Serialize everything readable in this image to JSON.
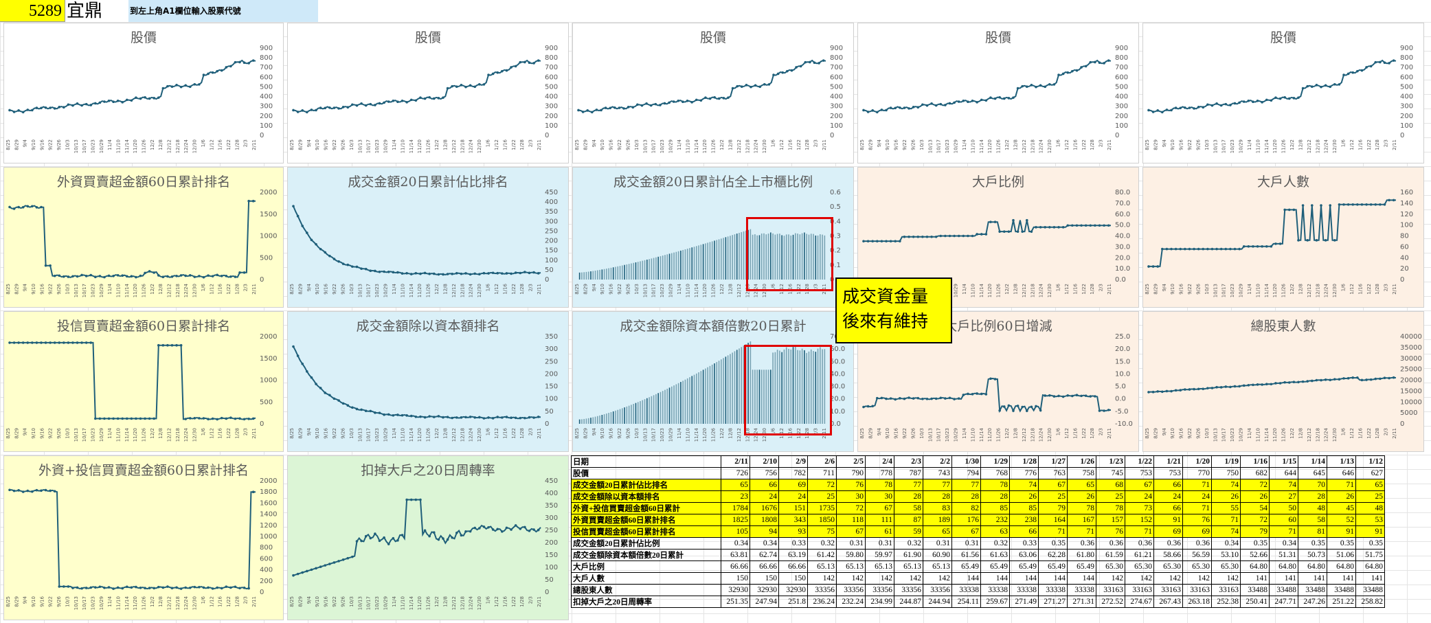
{
  "header": {
    "stock_code": "5289",
    "stock_name": "宜鼎",
    "instruction": "到左上角A1欄位輸入股票代號"
  },
  "colors": {
    "line": "#1f5f7a",
    "yellow_bg": "#ffffcc",
    "blue_bg": "#daf0f8",
    "peach_bg": "#fdf0e4",
    "green_bg": "#dcf5d6",
    "highlight": "#ffff00",
    "red_box": "#e00000"
  },
  "x_ticks": [
    "8/25",
    "8/29",
    "9/4",
    "9/10",
    "9/16",
    "9/22",
    "9/26",
    "10/3",
    "10/13",
    "10/17",
    "10/23",
    "10/29",
    "11/4",
    "11/10",
    "11/14",
    "11/20",
    "11/26",
    "12/2",
    "12/8",
    "12/12",
    "12/18",
    "12/24",
    "12/30",
    "1/6",
    "1/12",
    "1/16",
    "1/22",
    "1/28",
    "2/3",
    "2/11"
  ],
  "charts": [
    {
      "id": "price1",
      "title": "股價",
      "type": "line",
      "y_ticks": [
        "900",
        "800",
        "700",
        "600",
        "500",
        "400",
        "300",
        "200",
        "100",
        "0"
      ],
      "ylim": [
        0,
        900
      ]
    },
    {
      "id": "price2",
      "title": "股價",
      "type": "line",
      "y_ticks": [
        "900",
        "800",
        "700",
        "600",
        "500",
        "400",
        "300",
        "200",
        "100",
        "0"
      ],
      "ylim": [
        0,
        900
      ]
    },
    {
      "id": "price3",
      "title": "股價",
      "type": "line",
      "y_ticks": [
        "900",
        "800",
        "700",
        "600",
        "500",
        "400",
        "300",
        "200",
        "100",
        "0"
      ],
      "ylim": [
        0,
        900
      ]
    },
    {
      "id": "price4",
      "title": "股價",
      "type": "line",
      "y_ticks": [
        "900",
        "800",
        "700",
        "600",
        "500",
        "400",
        "300",
        "200",
        "100",
        "0"
      ],
      "ylim": [
        0,
        900
      ]
    },
    {
      "id": "price5",
      "title": "股價",
      "type": "line",
      "y_ticks": [
        "900",
        "800",
        "700",
        "600",
        "500",
        "400",
        "300",
        "200",
        "100",
        "0"
      ],
      "ylim": [
        0,
        900
      ]
    },
    {
      "id": "foreign_rank",
      "title": "外資買賣超金額60日累計排名",
      "type": "line",
      "y_ticks": [
        "2000",
        "1500",
        "1000",
        "500",
        "0"
      ],
      "ylim": [
        0,
        2000
      ]
    },
    {
      "id": "turnover_rank",
      "title": "成交金額20日累計佔比排名",
      "type": "line",
      "y_ticks": [
        "450",
        "400",
        "350",
        "300",
        "250",
        "200",
        "150",
        "100",
        "50",
        "0"
      ],
      "ylim": [
        0,
        450
      ]
    },
    {
      "id": "turnover_ratio",
      "title": "成交金額20日累計佔全上市櫃比例",
      "type": "bar",
      "y_ticks": [
        "0.6",
        "0.5",
        "0.4",
        "0.3",
        "0.2",
        "0.1",
        "0"
      ],
      "ylim": [
        0,
        0.6
      ]
    },
    {
      "id": "big_holder_ratio",
      "title": "大戶比例",
      "type": "line",
      "y_ticks": [
        "80.0",
        "70.0",
        "60.0",
        "50.0",
        "40.0",
        "30.0",
        "20.0",
        "10.0",
        "0.0"
      ],
      "ylim": [
        0,
        80
      ]
    },
    {
      "id": "big_holder_count",
      "title": "大戶人數",
      "type": "line",
      "y_ticks": [
        "160",
        "140",
        "120",
        "100",
        "80",
        "60",
        "40",
        "20",
        "0"
      ],
      "ylim": [
        0,
        160
      ]
    },
    {
      "id": "trust_rank",
      "title": "投信買賣超金額60日累計排名",
      "type": "line",
      "y_ticks": [
        "2000",
        "1500",
        "1000",
        "500",
        "0"
      ],
      "ylim": [
        0,
        2000
      ]
    },
    {
      "id": "turnover_cap_rank",
      "title": "成交金額除以資本額排名",
      "type": "line",
      "y_ticks": [
        "350",
        "300",
        "250",
        "200",
        "150",
        "100",
        "50",
        "0"
      ],
      "ylim": [
        0,
        350
      ]
    },
    {
      "id": "turnover_cap_multiple",
      "title": "成交金額除資本額倍數20日累計",
      "type": "bar",
      "y_ticks": [
        "70.0",
        "60.0",
        "50.0",
        "40.0",
        "30.0",
        "20.0",
        "10.0",
        "0.0"
      ],
      "ylim": [
        0,
        70
      ]
    },
    {
      "id": "big_holder_change",
      "title": "大戶比例60日增減",
      "type": "line",
      "y_ticks": [
        "25.0",
        "20.0",
        "15.0",
        "10.0",
        "5.0",
        "0.0",
        "-5.0",
        "-10.0"
      ],
      "ylim": [
        -10,
        25
      ]
    },
    {
      "id": "total_holders",
      "title": "總股東人數",
      "type": "line",
      "y_ticks": [
        "40000",
        "35000",
        "30000",
        "25000",
        "20000",
        "15000",
        "10000",
        "5000",
        "0"
      ],
      "ylim": [
        0,
        40000
      ]
    },
    {
      "id": "combined_rank",
      "title": "外資+投信買賣超金額60日累計排名",
      "type": "line",
      "y_ticks": [
        "2000",
        "1800",
        "1600",
        "1400",
        "1200",
        "1000",
        "800",
        "600",
        "400",
        "200",
        "0"
      ],
      "ylim": [
        0,
        2000
      ]
    },
    {
      "id": "turnover_rate",
      "title": "扣掉大戶之20日周轉率",
      "type": "line",
      "y_ticks": [
        "450",
        "400",
        "350",
        "300",
        "250",
        "200",
        "150",
        "100",
        "50",
        "0"
      ],
      "ylim": [
        0,
        450
      ]
    }
  ],
  "callout": {
    "line1": "成交資金量",
    "line2": "後來有維持"
  },
  "table": {
    "dates": [
      "2/11",
      "2/10",
      "2/9",
      "2/6",
      "2/5",
      "2/4",
      "2/3",
      "2/2",
      "1/30",
      "1/29",
      "1/28",
      "1/27",
      "1/26",
      "1/23",
      "1/22",
      "1/21",
      "1/20",
      "1/19",
      "1/16",
      "1/15",
      "1/14",
      "1/13",
      "1/12"
    ],
    "rows": [
      {
        "label": "日期",
        "header": true,
        "values": []
      },
      {
        "label": "股價",
        "hl": false,
        "values": [
          "726",
          "756",
          "782",
          "711",
          "790",
          "778",
          "787",
          "743",
          "794",
          "768",
          "776",
          "763",
          "758",
          "745",
          "753",
          "753",
          "770",
          "750",
          "682",
          "644",
          "645",
          "646",
          "627"
        ]
      },
      {
        "label": "成交金額20日累計佔比排名",
        "hl": true,
        "values": [
          "65",
          "66",
          "69",
          "72",
          "76",
          "78",
          "77",
          "77",
          "77",
          "78",
          "74",
          "67",
          "65",
          "68",
          "67",
          "66",
          "71",
          "74",
          "72",
          "74",
          "70",
          "71",
          "65"
        ]
      },
      {
        "label": "成交金額除以資本額排名",
        "hl": true,
        "values": [
          "23",
          "24",
          "24",
          "25",
          "30",
          "30",
          "28",
          "28",
          "28",
          "28",
          "26",
          "25",
          "26",
          "25",
          "24",
          "24",
          "24",
          "26",
          "26",
          "27",
          "28",
          "26",
          "25"
        ]
      },
      {
        "label": "外資+投信買賣超金額60日累計",
        "hl": true,
        "values": [
          "1784",
          "1676",
          "151",
          "1735",
          "72",
          "67",
          "58",
          "83",
          "82",
          "85",
          "85",
          "79",
          "78",
          "78",
          "73",
          "66",
          "71",
          "55",
          "54",
          "50",
          "48",
          "45",
          "48"
        ]
      },
      {
        "label": "外資買賣超金額60日累計排名",
        "hl": true,
        "values": [
          "1825",
          "1808",
          "343",
          "1850",
          "118",
          "111",
          "87",
          "189",
          "176",
          "232",
          "238",
          "164",
          "167",
          "157",
          "152",
          "91",
          "76",
          "71",
          "72",
          "60",
          "58",
          "52",
          "53"
        ]
      },
      {
        "label": "投信買賣超金額60日累計排名",
        "hl": true,
        "values": [
          "105",
          "94",
          "93",
          "75",
          "67",
          "61",
          "59",
          "65",
          "67",
          "63",
          "66",
          "71",
          "71",
          "76",
          "71",
          "69",
          "69",
          "74",
          "79",
          "71",
          "81",
          "91",
          "91"
        ]
      },
      {
        "label": "成交金額20日累計佔比例",
        "hl": false,
        "values": [
          "0.34",
          "0.34",
          "0.33",
          "0.32",
          "0.31",
          "0.31",
          "0.32",
          "0.31",
          "0.31",
          "0.32",
          "0.33",
          "0.35",
          "0.36",
          "0.36",
          "0.36",
          "0.36",
          "0.36",
          "0.34",
          "0.35",
          "0.34",
          "0.35",
          "0.35",
          "0.35"
        ]
      },
      {
        "label": "成交金額除資本額倍數20日累計",
        "hl": false,
        "values": [
          "63.81",
          "62.74",
          "63.19",
          "61.42",
          "59.80",
          "59.97",
          "61.90",
          "60.90",
          "61.56",
          "61.63",
          "63.06",
          "62.28",
          "61.80",
          "61.59",
          "61.21",
          "58.66",
          "56.59",
          "53.10",
          "52.66",
          "51.31",
          "50.73",
          "51.06",
          "51.75"
        ]
      },
      {
        "label": "大戶比例",
        "hl": false,
        "values": [
          "66.66",
          "66.66",
          "66.66",
          "65.13",
          "65.13",
          "65.13",
          "65.13",
          "65.13",
          "65.49",
          "65.49",
          "65.49",
          "65.49",
          "65.49",
          "65.30",
          "65.30",
          "65.30",
          "65.30",
          "65.30",
          "64.80",
          "64.80",
          "64.80",
          "64.80",
          "64.80"
        ]
      },
      {
        "label": "大戶人數",
        "hl": false,
        "values": [
          "150",
          "150",
          "150",
          "142",
          "142",
          "142",
          "142",
          "142",
          "144",
          "144",
          "144",
          "144",
          "144",
          "142",
          "142",
          "142",
          "142",
          "142",
          "141",
          "141",
          "141",
          "141",
          "141"
        ]
      },
      {
        "label": "總股東人數",
        "hl": false,
        "values": [
          "32930",
          "32930",
          "32930",
          "33356",
          "33356",
          "33356",
          "33356",
          "33356",
          "33338",
          "33338",
          "33338",
          "33338",
          "33338",
          "33163",
          "33163",
          "33163",
          "33163",
          "33163",
          "33488",
          "33488",
          "33488",
          "33488",
          "33488"
        ]
      },
      {
        "label": "扣掉大戶之20日周轉率",
        "hl": false,
        "values": [
          "251.35",
          "247.94",
          "251.8",
          "236.24",
          "232.24",
          "234.99",
          "244.87",
          "244.94",
          "254.11",
          "259.67",
          "271.49",
          "271.27",
          "271.31",
          "272.52",
          "274.67",
          "267.43",
          "263.18",
          "252.38",
          "250.41",
          "247.71",
          "247.26",
          "251.22",
          "258.82"
        ]
      }
    ]
  }
}
